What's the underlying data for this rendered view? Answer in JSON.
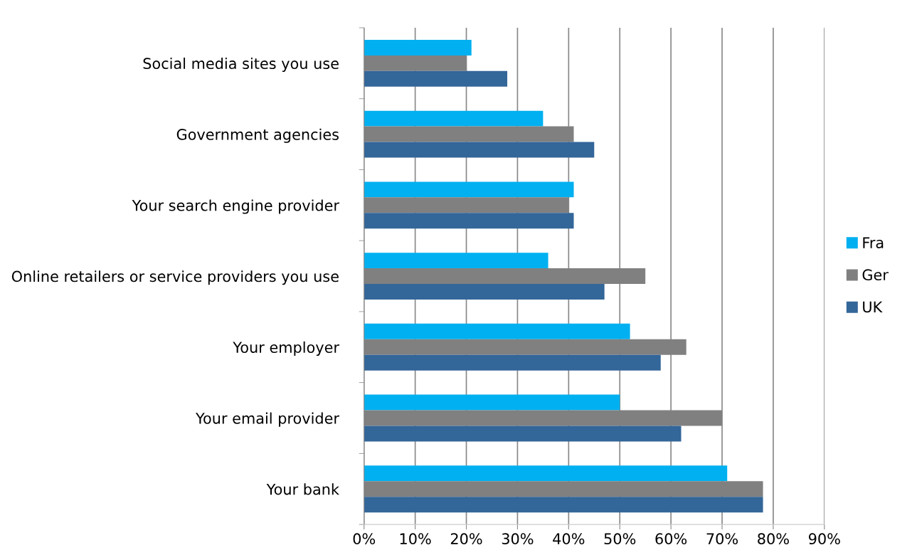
{
  "chart_data": {
    "type": "bar",
    "orientation": "horizontal",
    "categories": [
      "Social media sites you use",
      "Government agencies",
      "Your search engine provider",
      "Online retailers or service providers you use",
      "Your employer",
      "Your email provider",
      "Your bank"
    ],
    "series": [
      {
        "name": "Fra",
        "color": "#00b0f0",
        "values": [
          21,
          35,
          41,
          36,
          52,
          50,
          71
        ]
      },
      {
        "name": "Ger",
        "color": "#808080",
        "values": [
          20,
          41,
          40,
          55,
          63,
          70,
          78
        ]
      },
      {
        "name": "UK",
        "color": "#336699",
        "values": [
          28,
          45,
          41,
          47,
          58,
          62,
          78
        ]
      }
    ],
    "xlim": [
      0,
      90
    ],
    "xticks": [
      {
        "value": 0,
        "label": "0%"
      },
      {
        "value": 10,
        "label": "10%"
      },
      {
        "value": 20,
        "label": "20%"
      },
      {
        "value": 30,
        "label": "30%"
      },
      {
        "value": 40,
        "label": "40%"
      },
      {
        "value": 50,
        "label": "50%"
      },
      {
        "value": 60,
        "label": "60%"
      },
      {
        "value": 70,
        "label": "70%"
      },
      {
        "value": 80,
        "label": "80%"
      },
      {
        "value": 90,
        "label": "90%"
      }
    ],
    "grid": "x",
    "legend": "right"
  }
}
